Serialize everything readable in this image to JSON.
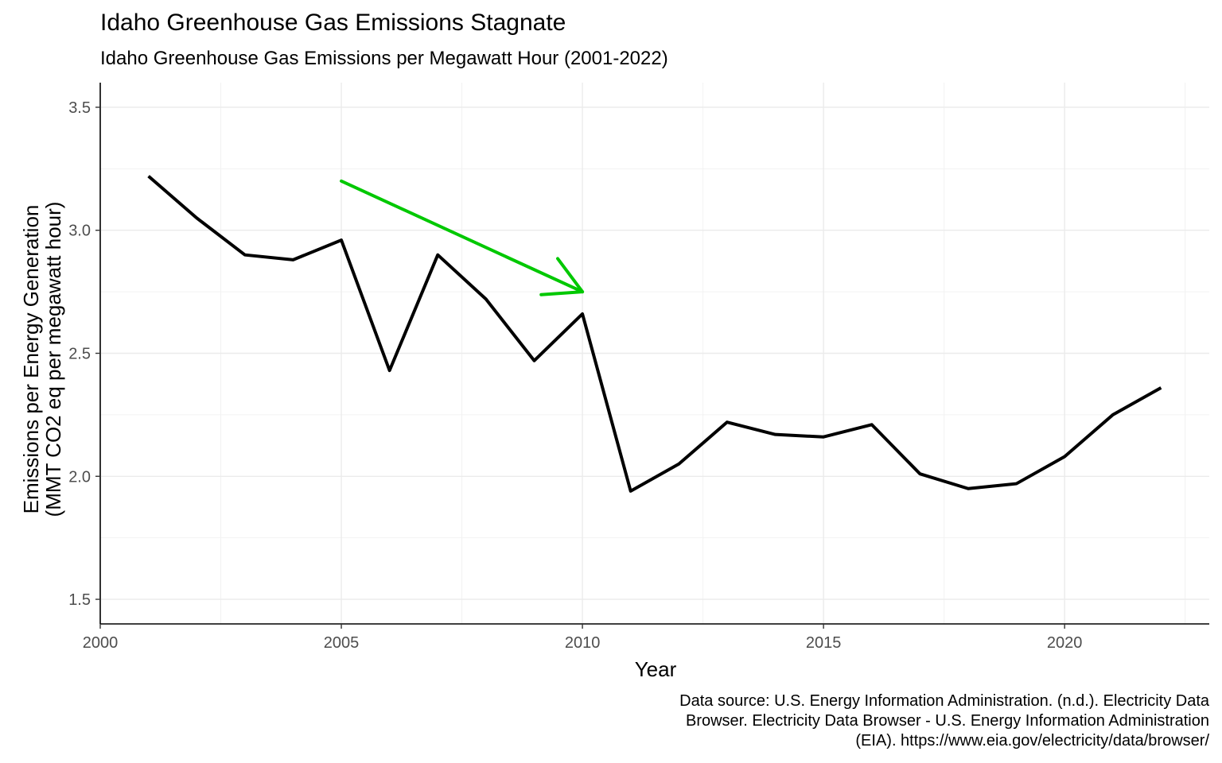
{
  "chart_data": {
    "type": "line",
    "title": "Idaho Greenhouse Gas Emissions Stagnate",
    "subtitle": "Idaho Greenhouse Gas Emissions per Megawatt Hour (2001-2022)",
    "xlabel": "Year",
    "ylabel_line1": "Emissions per Energy Generation",
    "ylabel_line2": "(MMT CO2 eq per megawatt hour)",
    "xlim": [
      2000,
      2023
    ],
    "ylim": [
      1.4,
      3.6
    ],
    "x_ticks": [
      2000,
      2005,
      2010,
      2015,
      2020
    ],
    "x_tick_labels": [
      "2000",
      "2005",
      "2010",
      "2015",
      "2020"
    ],
    "y_ticks": [
      1.5,
      2.0,
      2.5,
      3.0,
      3.5
    ],
    "y_tick_labels": [
      "1.5",
      "2.0",
      "2.5",
      "3.0",
      "3.5"
    ],
    "grid": true,
    "series": [
      {
        "color": "#000000",
        "x": [
          2001,
          2002,
          2003,
          2004,
          2005,
          2006,
          2007,
          2008,
          2009,
          2010,
          2011,
          2012,
          2013,
          2014,
          2015,
          2016,
          2017,
          2018,
          2019,
          2020,
          2021,
          2022
        ],
        "y": [
          3.22,
          3.05,
          2.9,
          2.88,
          2.96,
          2.43,
          2.9,
          2.72,
          2.47,
          2.66,
          1.94,
          2.05,
          2.22,
          2.17,
          2.16,
          2.21,
          2.01,
          1.95,
          1.97,
          2.08,
          2.25,
          2.36
        ]
      }
    ],
    "annotations": [
      {
        "type": "arrow",
        "color": "#00c800",
        "from": [
          2005,
          3.2
        ],
        "to": [
          2010,
          2.75
        ]
      }
    ],
    "caption_lines": [
      "Data source: U.S. Energy Information Administration. (n.d.). Electricity Data",
      "Browser. Electricity Data Browser - U.S. Energy Information Administration",
      "(EIA). https://www.eia.gov/electricity/data/browser/"
    ]
  }
}
